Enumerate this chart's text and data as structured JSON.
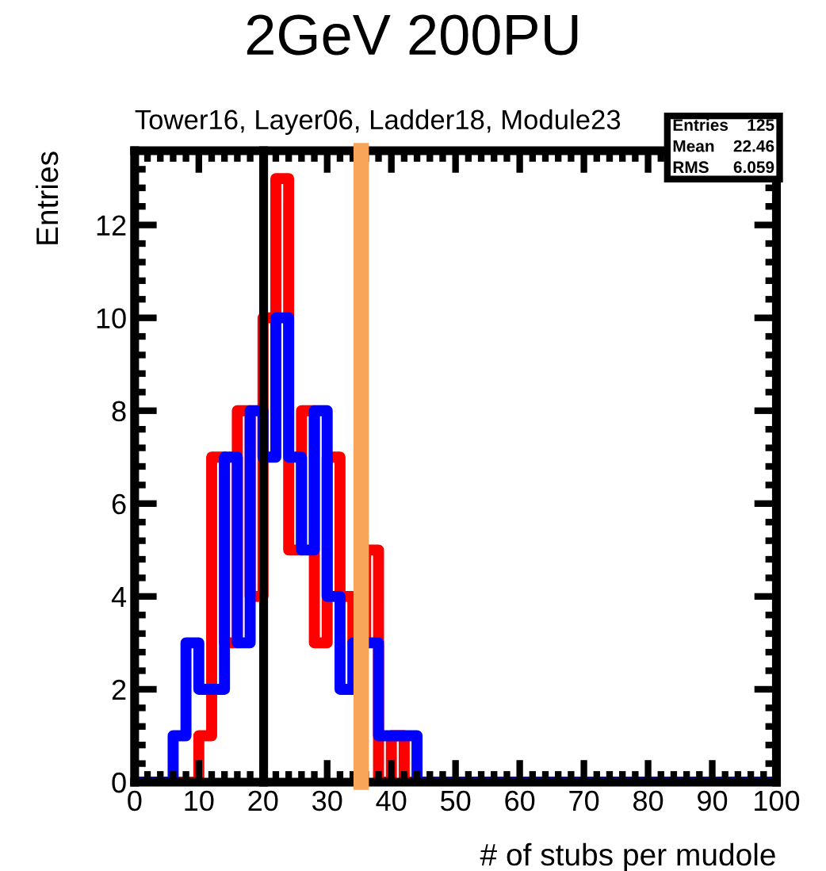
{
  "chart_data": {
    "type": "histogram",
    "title": "2GeV 200PU",
    "subtitle": "Tower16, Layer06, Ladder18, Module23",
    "xlabel": "# of stubs per mudole",
    "ylabel": "Entries",
    "bins": [
      0,
      2,
      4,
      6,
      8,
      10,
      12,
      14,
      16,
      18,
      20,
      22,
      24,
      26,
      28,
      30,
      32,
      34,
      36,
      38,
      40,
      42,
      44,
      46,
      48,
      50,
      52,
      54,
      56,
      58,
      60,
      62,
      64,
      66,
      68,
      70,
      72,
      74,
      76,
      78,
      80,
      82,
      84,
      86,
      88,
      90,
      92,
      94,
      96,
      98,
      100
    ],
    "series": [
      {
        "color": "#ff0000",
        "values": [
          0,
          0,
          0,
          0,
          0,
          1,
          7,
          3,
          8,
          4,
          10,
          13,
          5,
          8,
          3,
          7,
          4,
          3,
          5,
          0,
          1,
          0,
          0,
          0,
          0,
          0,
          0,
          0,
          0,
          0,
          0,
          0,
          0,
          0,
          0,
          0,
          0,
          0,
          0,
          0,
          0,
          0,
          0,
          0,
          0,
          0,
          0,
          0,
          0,
          0
        ]
      },
      {
        "color": "#0000ff",
        "values": [
          0,
          0,
          0,
          1,
          3,
          2,
          2,
          7,
          3,
          8,
          7,
          10,
          7,
          5,
          8,
          4,
          2,
          3,
          3,
          1,
          1,
          1,
          0,
          0,
          0,
          0,
          0,
          0,
          0,
          0,
          0,
          0,
          0,
          0,
          0,
          0,
          0,
          0,
          0,
          0,
          0,
          0,
          0,
          0,
          0,
          0,
          0,
          0,
          0,
          0
        ]
      }
    ],
    "xlim": [
      0,
      100
    ],
    "ylim": [
      0,
      13.6
    ],
    "xticks": [
      0,
      10,
      20,
      30,
      40,
      50,
      60,
      70,
      80,
      90,
      100
    ],
    "yticks": [
      0,
      2,
      4,
      6,
      8,
      10,
      12
    ],
    "ref_lines": [
      {
        "axis": "x",
        "value": 20.1,
        "color": "#000000"
      },
      {
        "axis": "x",
        "value": 35.3,
        "color": "#f8a55a"
      }
    ],
    "annotations": [
      "Entries",
      "125",
      "Mean",
      "22.46",
      "RMS",
      "6.059"
    ],
    "grid": false,
    "legend": false
  }
}
